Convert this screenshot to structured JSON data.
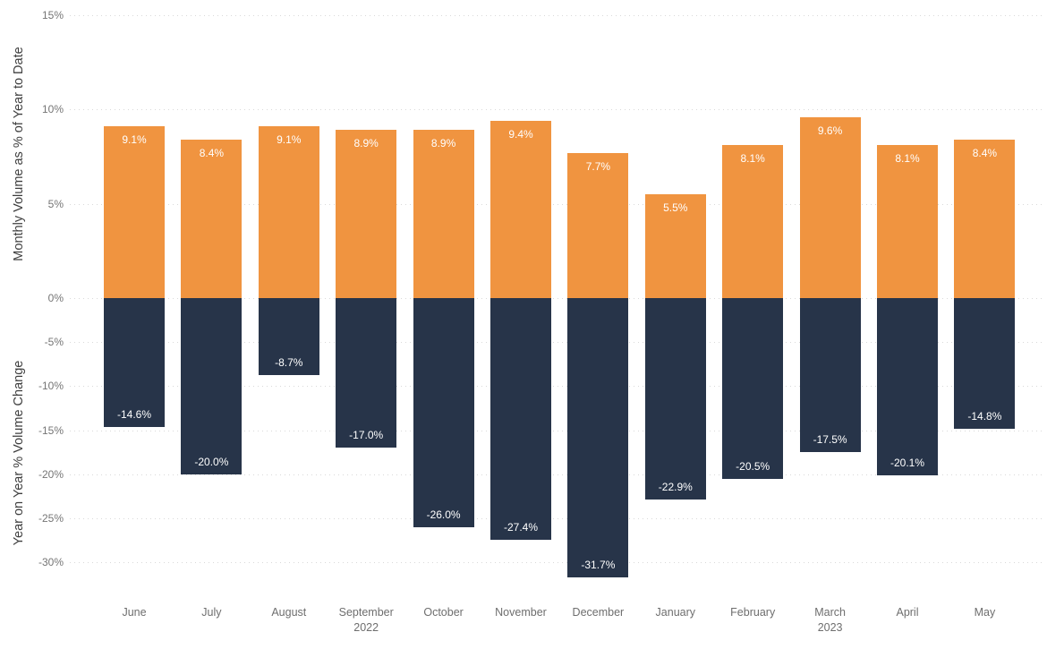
{
  "chart_data": {
    "type": "bar",
    "title": "",
    "legend": "none",
    "grid": {
      "horizontal": true,
      "style": "dotted"
    },
    "categories": [
      "June",
      "July",
      "August",
      "September",
      "October",
      "November",
      "December",
      "January",
      "February",
      "March",
      "April",
      "May"
    ],
    "category_sublabels": [
      "",
      "",
      "",
      "2022",
      "",
      "",
      "",
      "",
      "",
      "2023",
      "",
      ""
    ],
    "series": [
      {
        "name": "Monthly Volume as % of Year to Date",
        "axis": "positive",
        "color": "#F09440",
        "values": [
          9.1,
          8.4,
          9.1,
          8.9,
          8.9,
          9.4,
          7.7,
          5.5,
          8.1,
          9.6,
          8.1,
          8.4
        ],
        "data_labels": [
          "9.1%",
          "8.4%",
          "9.1%",
          "8.9%",
          "8.9%",
          "9.4%",
          "7.7%",
          "5.5%",
          "8.1%",
          "9.6%",
          "8.1%",
          "8.4%"
        ]
      },
      {
        "name": "Year on Year % Volume Change",
        "axis": "negative",
        "color": "#273449",
        "values": [
          -14.6,
          -20.0,
          -8.7,
          -17.0,
          -26.0,
          -27.4,
          -31.7,
          -22.9,
          -20.5,
          -17.5,
          -20.1,
          -14.8
        ],
        "data_labels": [
          "-14.6%",
          "-20.0%",
          "-8.7%",
          "-17.0%",
          "-26.0%",
          "-27.4%",
          "-31.7%",
          "-22.9%",
          "-20.5%",
          "-17.5%",
          "-20.1%",
          "-14.8%"
        ]
      }
    ],
    "y_axis": {
      "positive_label": "Monthly Volume as % of Year to Date",
      "negative_label": "Year on Year % Volume Change",
      "positive_range": [
        0,
        15
      ],
      "negative_range": [
        -30,
        0
      ],
      "ticks": [
        {
          "value": 15,
          "label": "15%"
        },
        {
          "value": 10,
          "label": "10%"
        },
        {
          "value": 5,
          "label": "5%"
        },
        {
          "value": 0,
          "label": "0%"
        },
        {
          "value": -5,
          "label": "-5%"
        },
        {
          "value": -10,
          "label": "-10%"
        },
        {
          "value": -15,
          "label": "-15%"
        },
        {
          "value": -20,
          "label": "-20%"
        },
        {
          "value": -25,
          "label": "-25%"
        },
        {
          "value": -30,
          "label": "-30%"
        }
      ]
    },
    "colors": {
      "positive_bar": "#F09440",
      "negative_bar": "#273449",
      "bar_label_text": "#FFFFFF",
      "axis_text": "#757575",
      "axis_title_text": "#3F3F3F",
      "gridline": "#D9D9D9",
      "background": "#FFFFFF"
    }
  }
}
